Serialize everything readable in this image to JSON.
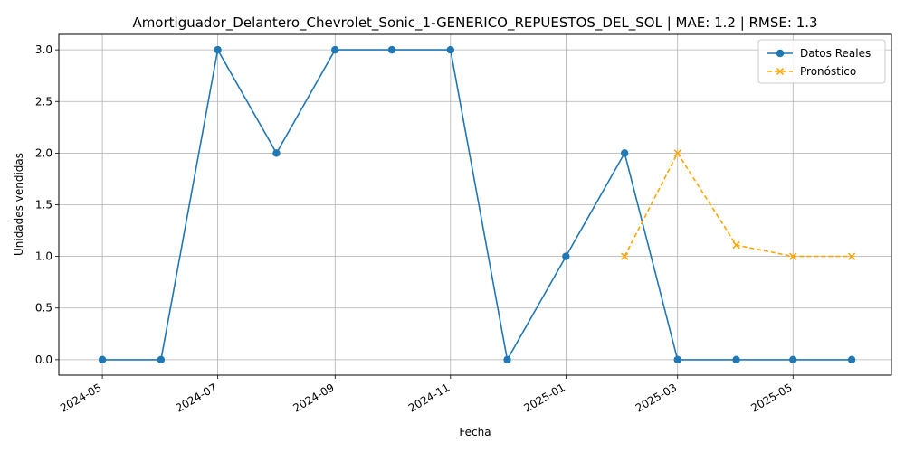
{
  "chart_data": {
    "type": "line",
    "title": "Amortiguador_Delantero_Chevrolet_Sonic_1-GENERICO_REPUESTOS_DEL_SOL | MAE: 1.2 | RMSE: 1.3",
    "xlabel": "Fecha",
    "ylabel": "Unidades vendidas",
    "xlim": [
      "2024-04-08",
      "2025-06-22"
    ],
    "ylim": [
      -0.15,
      3.15
    ],
    "x_ticks": [
      "2024-05",
      "2024-07",
      "2024-09",
      "2024-11",
      "2025-01",
      "2025-03",
      "2025-05"
    ],
    "x_tick_dates": [
      "2024-05-01",
      "2024-07-01",
      "2024-09-01",
      "2024-11-01",
      "2025-01-01",
      "2025-03-01",
      "2025-05-01"
    ],
    "y_ticks": [
      "0.0",
      "0.5",
      "1.0",
      "1.5",
      "2.0",
      "2.5",
      "3.0"
    ],
    "y_tick_values": [
      0,
      0.5,
      1.0,
      1.5,
      2.0,
      2.5,
      3.0
    ],
    "grid": true,
    "legend": "top-right",
    "series": [
      {
        "name": "Datos Reales",
        "color": "#1f77b4",
        "style": "solid",
        "marker": "circle",
        "x": [
          "2024-05-01",
          "2024-06-01",
          "2024-07-01",
          "2024-08-01",
          "2024-09-01",
          "2024-10-01",
          "2024-11-01",
          "2024-12-01",
          "2025-01-01",
          "2025-02-01",
          "2025-03-01",
          "2025-04-01",
          "2025-05-01",
          "2025-06-01"
        ],
        "values": [
          0,
          0,
          3,
          2,
          3,
          3,
          3,
          0,
          1,
          2,
          0,
          0,
          0,
          0
        ]
      },
      {
        "name": "Pronóstico",
        "color": "#ffa500",
        "style": "dashed",
        "marker": "x",
        "x": [
          "2025-02-01",
          "2025-03-01",
          "2025-04-01",
          "2025-05-01",
          "2025-06-01"
        ],
        "values": [
          1.0,
          2.0,
          1.11,
          1.0,
          1.0
        ]
      }
    ]
  }
}
